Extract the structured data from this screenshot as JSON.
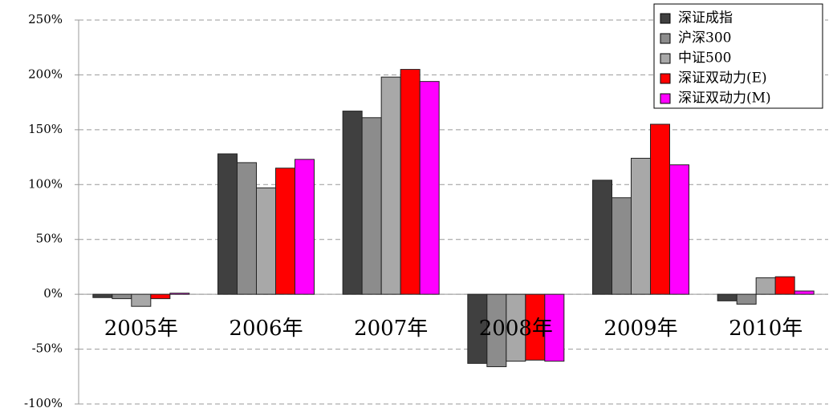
{
  "chart_data": {
    "type": "bar",
    "categories": [
      "2005年",
      "2006年",
      "2007年",
      "2008年",
      "2009年",
      "2010年"
    ],
    "series": [
      {
        "name": "深证成指",
        "color": "#404040",
        "values": [
          -3,
          128,
          167,
          -63,
          104,
          -6
        ]
      },
      {
        "name": "沪深300",
        "color": "#8c8c8c",
        "values": [
          -4,
          120,
          161,
          -66,
          88,
          -9
        ]
      },
      {
        "name": "中证500",
        "color": "#a8a8a8",
        "values": [
          -11,
          97,
          198,
          -61,
          124,
          15
        ]
      },
      {
        "name": "深证双动力(E)",
        "color": "#ff0000",
        "values": [
          -4,
          115,
          205,
          -60,
          155,
          16
        ]
      },
      {
        "name": "深证双动力(M)",
        "color": "#ff00ff",
        "values": [
          1,
          123,
          194,
          -61,
          118,
          3
        ]
      }
    ],
    "ylim": [
      -100,
      250
    ],
    "yticks": [
      {
        "value": 250,
        "label": "250%"
      },
      {
        "value": 200,
        "label": "200%"
      },
      {
        "value": 150,
        "label": "150%"
      },
      {
        "value": 100,
        "label": "100%"
      },
      {
        "value": 50,
        "label": "50%"
      },
      {
        "value": 0,
        "label": "0%"
      },
      {
        "value": -50,
        "label": "-50%"
      },
      {
        "value": -100,
        "label": "-100%"
      }
    ],
    "grid": true,
    "legend": "top-right"
  }
}
